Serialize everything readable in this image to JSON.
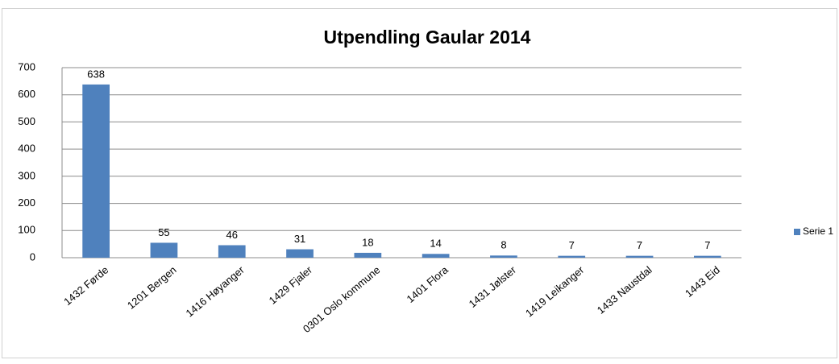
{
  "chart_data": {
    "type": "bar",
    "title": "Utpendling Gaular 2014",
    "categories": [
      "1432 Førde",
      "1201 Bergen",
      "1416 Høyanger",
      "1429 Fjaler",
      "0301 Oslo kommune",
      "1401 Flora",
      "1431 Jølster",
      "1419 Leikanger",
      "1433 Naustdal",
      "1443 Eid"
    ],
    "series": [
      {
        "name": "Serie 1",
        "color": "#4f81bd",
        "values": [
          638,
          55,
          46,
          31,
          18,
          14,
          8,
          7,
          7,
          7
        ]
      }
    ],
    "ylim": [
      0,
      700
    ],
    "yticks": [
      0,
      100,
      200,
      300,
      400,
      500,
      600,
      700
    ],
    "grid": true,
    "legend": "right"
  }
}
